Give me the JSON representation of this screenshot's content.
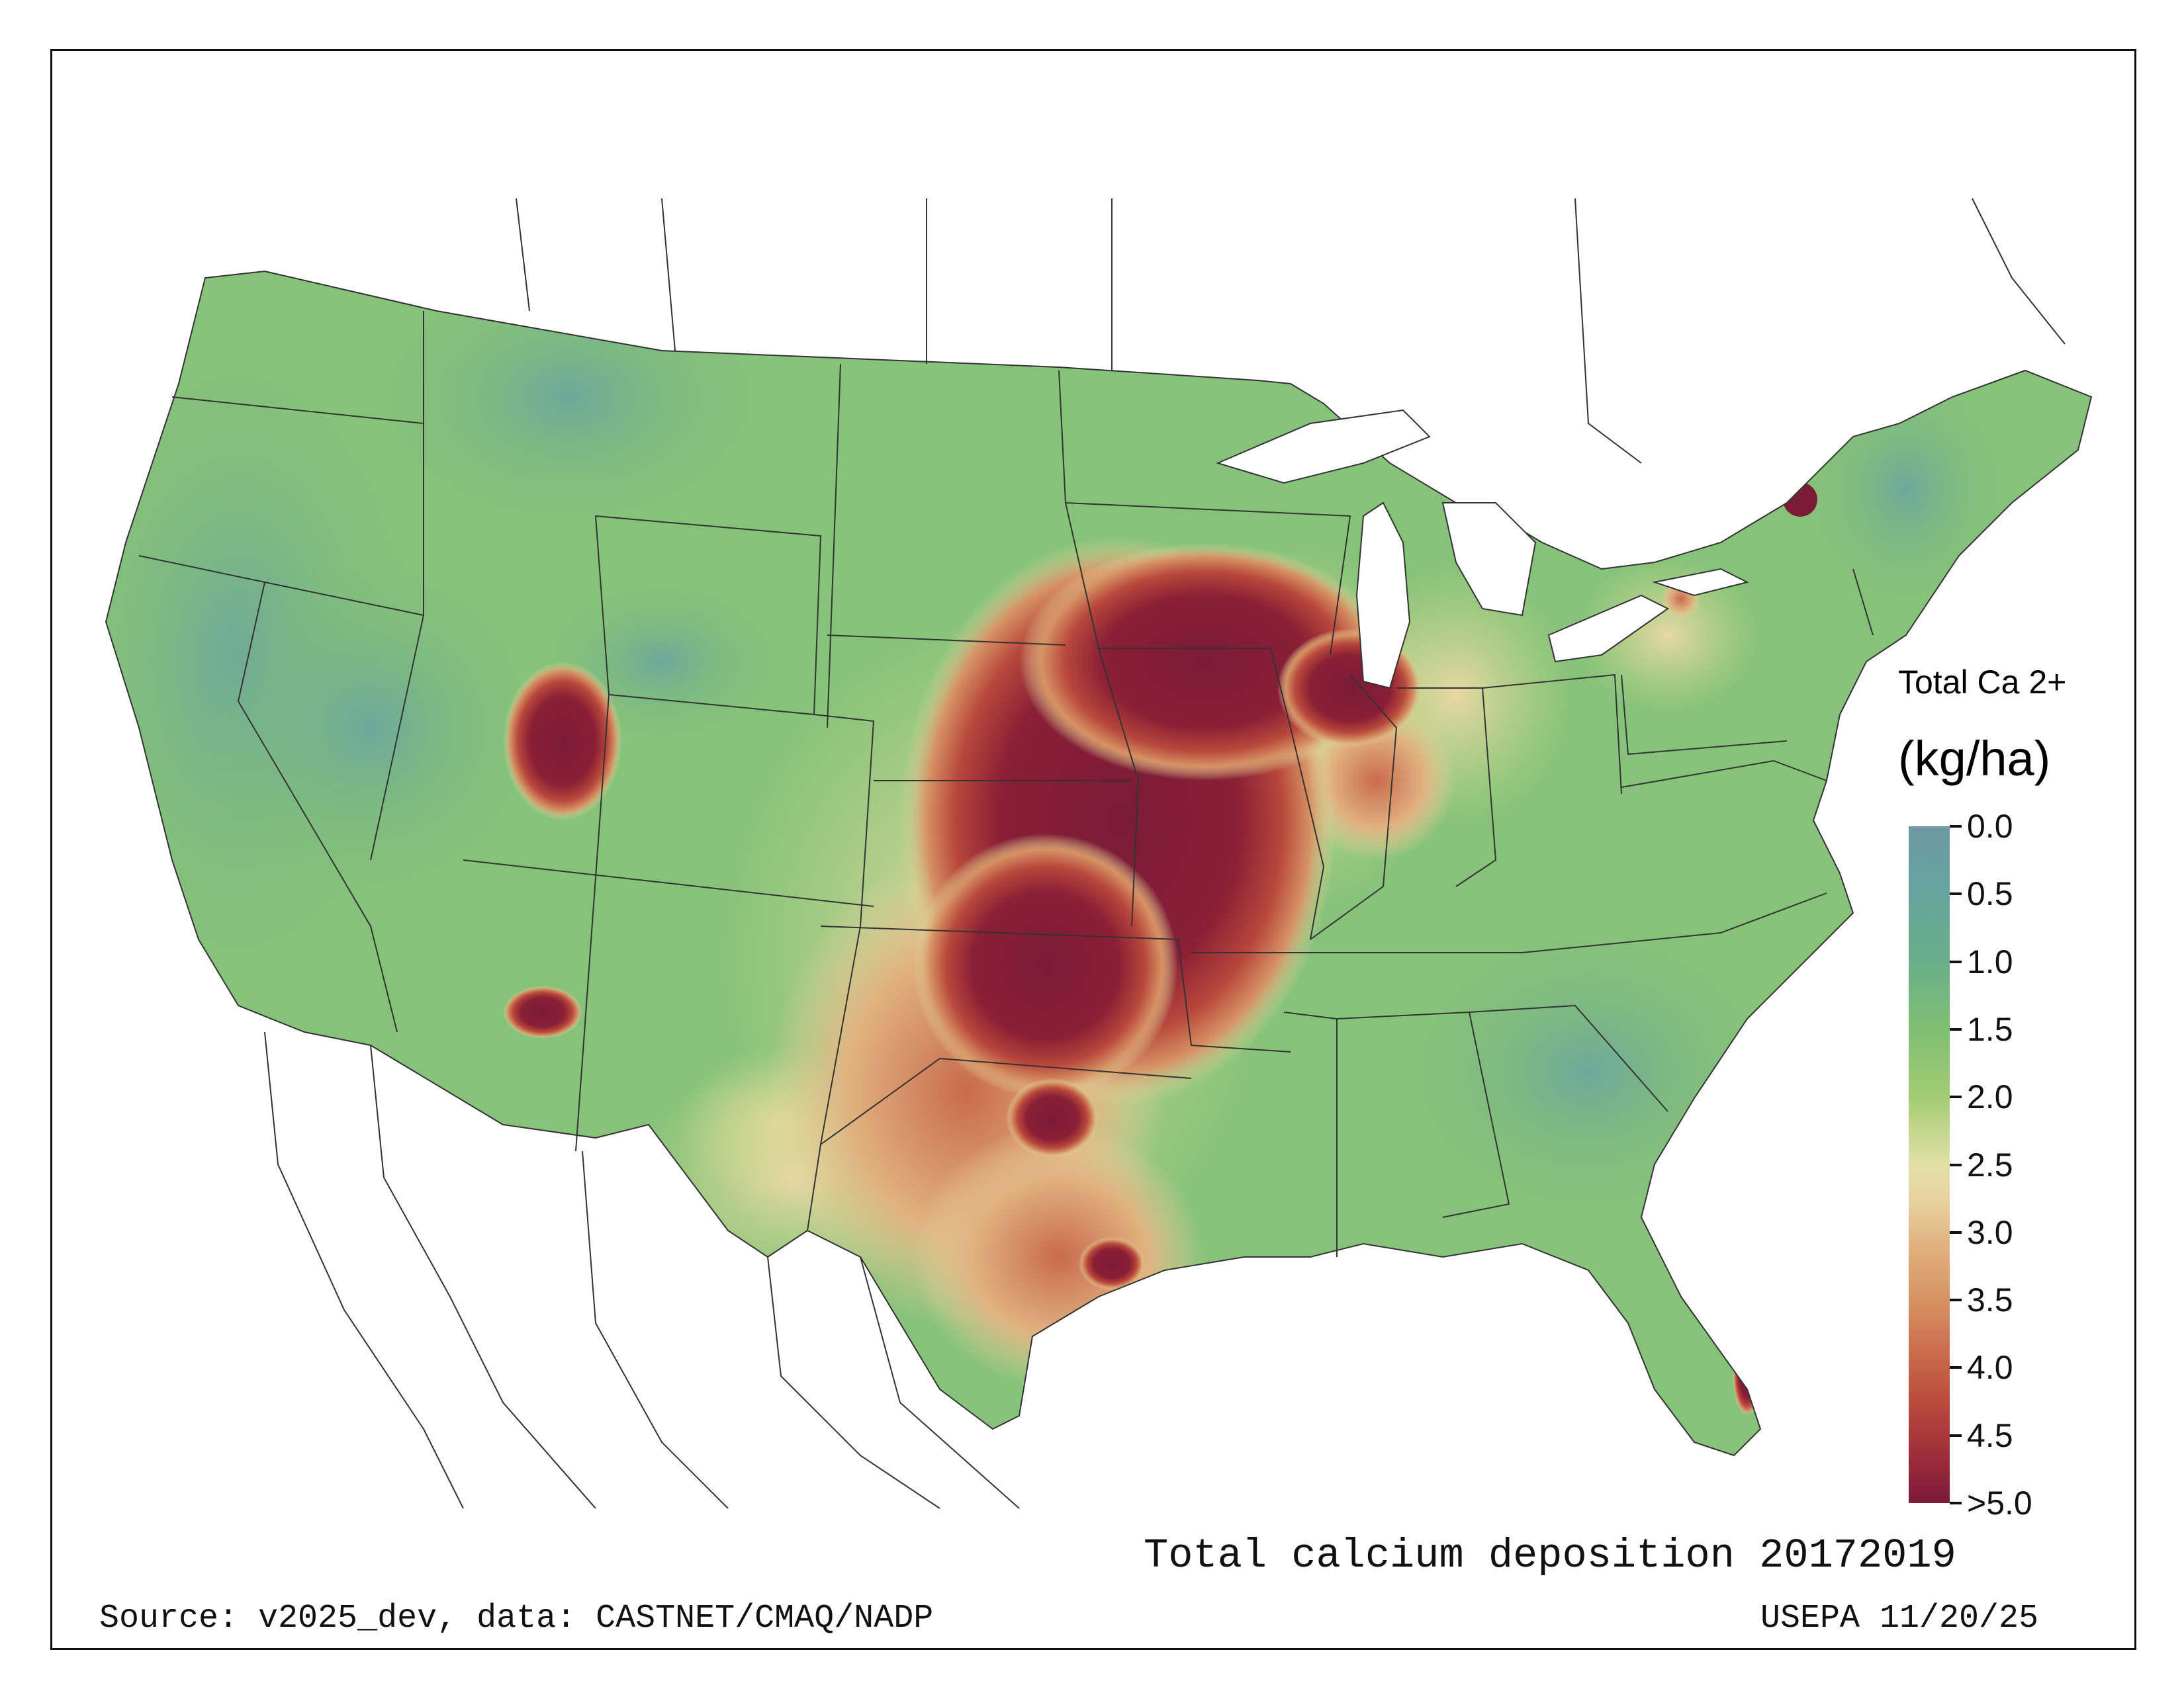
{
  "map": {
    "title": "Total calcium deposition 20172019",
    "source_note": "Source: v2025_dev, data: CASTNET/CMAQ/NADP",
    "credit": "USEPA 11/20/25",
    "region": "Contiguous United States"
  },
  "legend": {
    "title_line1": "Total Ca 2+",
    "title_line2": "(kg/ha)",
    "ticks": [
      "0.0",
      "0.5",
      "1.0",
      "1.5",
      "2.0",
      "2.5",
      "3.0",
      "3.5",
      "4.0",
      "4.5",
      ">5.0"
    ],
    "colors": {
      "low": "#6e98a3",
      "mid_low": "#7fbf73",
      "mid": "#e2e0a5",
      "mid_high": "#d69263",
      "high": "#7a1b38"
    }
  }
}
